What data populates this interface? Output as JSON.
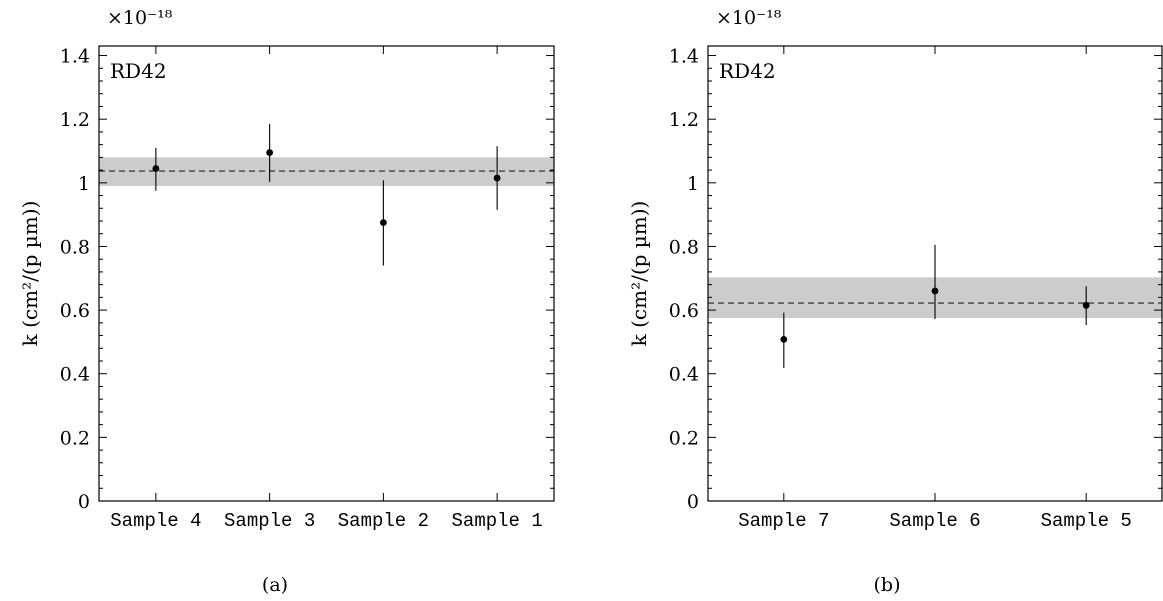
{
  "chart_data": [
    {
      "type": "scatter",
      "panel_label": "(a)",
      "annotation": "RD42",
      "exponent_label": "×10⁻¹⁸",
      "ylabel": "k (cm²/(p µm))",
      "ylim": [
        0,
        1.43
      ],
      "yticks": [
        "0",
        "0.2",
        "0.4",
        "0.6",
        "0.8",
        "1",
        "1.2",
        "1.4"
      ],
      "categories": [
        "Sample 4",
        "Sample 3",
        "Sample 2",
        "Sample 1"
      ],
      "values": [
        1.045,
        1.095,
        0.875,
        1.015
      ],
      "err_low": [
        0.975,
        1.003,
        0.74,
        0.915
      ],
      "err_high": [
        1.11,
        1.185,
        1.008,
        1.115
      ],
      "mean": 1.037,
      "band": [
        0.99,
        1.08
      ],
      "grid": false
    },
    {
      "type": "scatter",
      "panel_label": "(b)",
      "annotation": "RD42",
      "exponent_label": "×10⁻¹⁸",
      "ylabel": "k (cm²/(p µm))",
      "ylim": [
        0,
        1.43
      ],
      "yticks": [
        "0",
        "0.2",
        "0.4",
        "0.6",
        "0.8",
        "1",
        "1.2",
        "1.4"
      ],
      "categories": [
        "Sample 7",
        "Sample 6",
        "Sample 5"
      ],
      "values": [
        0.508,
        0.66,
        0.615
      ],
      "err_low": [
        0.418,
        0.572,
        0.553
      ],
      "err_high": [
        0.592,
        0.805,
        0.675
      ],
      "mean": 0.622,
      "band": [
        0.575,
        0.703
      ],
      "grid": false
    }
  ]
}
